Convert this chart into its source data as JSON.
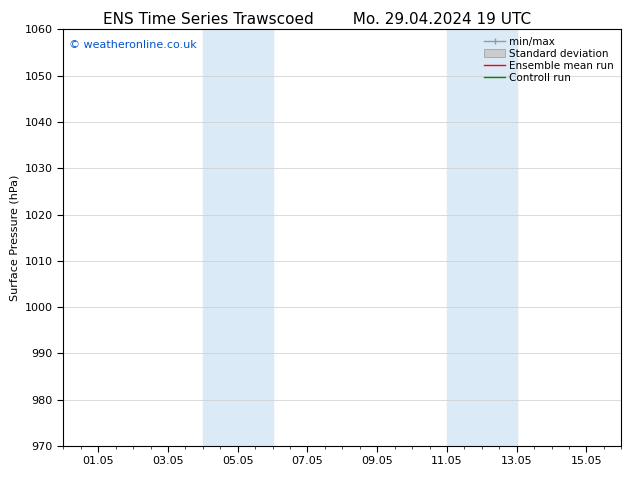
{
  "title_left": "ENS Time Series Trawscoed",
  "title_right": "Mo. 29.04.2024 19 UTC",
  "ylabel": "Surface Pressure (hPa)",
  "ylim": [
    970,
    1060
  ],
  "yticks": [
    970,
    980,
    990,
    1000,
    1010,
    1020,
    1030,
    1040,
    1050,
    1060
  ],
  "xtick_labels": [
    "01.05",
    "03.05",
    "05.05",
    "07.05",
    "09.05",
    "11.05",
    "13.05",
    "15.05"
  ],
  "xtick_positions": [
    1,
    3,
    5,
    7,
    9,
    11,
    13,
    15
  ],
  "xlim": [
    0,
    16
  ],
  "shaded_bands": [
    {
      "xmin": 4.0,
      "xmax": 6.0
    },
    {
      "xmin": 11.0,
      "xmax": 13.0
    }
  ],
  "shade_color": "#daeaf7",
  "copyright_text": "© weatheronline.co.uk",
  "copyright_color": "#0055cc",
  "legend_items": [
    {
      "label": "min/max",
      "color": "#999999",
      "lw": 1.0,
      "style": "minmax"
    },
    {
      "label": "Standard deviation",
      "color": "#cccccc",
      "lw": 8,
      "style": "band"
    },
    {
      "label": "Ensemble mean run",
      "color": "#ff0000",
      "lw": 1.0,
      "style": "line"
    },
    {
      "label": "Controll run",
      "color": "#008800",
      "lw": 1.0,
      "style": "line"
    }
  ],
  "bg_color": "#ffffff",
  "grid_color": "#cccccc",
  "title_fontsize": 11,
  "label_fontsize": 8,
  "tick_fontsize": 8,
  "copyright_fontsize": 8,
  "legend_fontsize": 7.5
}
